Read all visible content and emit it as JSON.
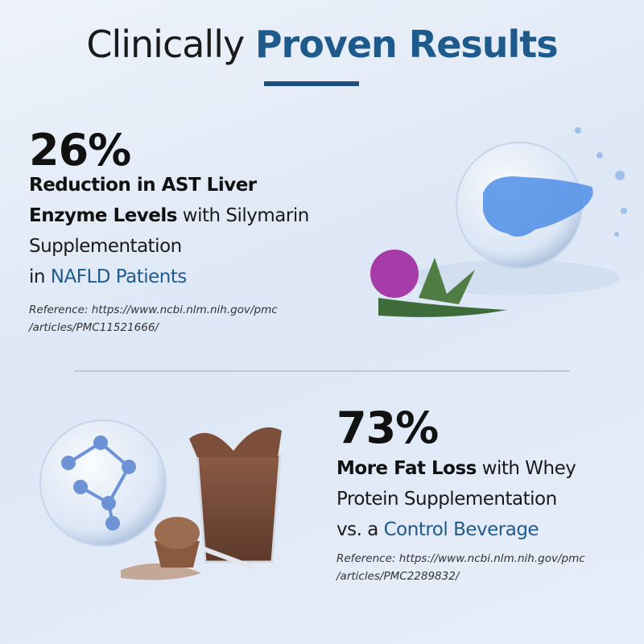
{
  "header": {
    "title": [
      {
        "text": "Clinically ",
        "kind": "regular"
      },
      {
        "text": "Proven Results",
        "kind": "accent-bold"
      }
    ]
  },
  "stats": [
    {
      "figure": "26%",
      "lines": [
        [
          {
            "text": "Reduction in AST Liver",
            "kind": "bold"
          }
        ],
        [
          {
            "text": "Enzyme Levels",
            "kind": "bold"
          },
          {
            "text": " with Silymarin",
            "kind": "regular"
          }
        ],
        [
          {
            "text": "Supplementation",
            "kind": "regular"
          }
        ],
        [
          {
            "text": "in ",
            "kind": "regular"
          },
          {
            "text": "NAFLD Patients",
            "kind": "accent"
          }
        ]
      ],
      "reference": [
        "Reference: https://www.ncbi.nlm.nih.gov/pmc",
        "/articles/PMC11521666/"
      ]
    },
    {
      "figure": "73%",
      "lines": [
        [
          {
            "text": "More Fat Loss",
            "kind": "bold"
          },
          {
            "text": " with Whey",
            "kind": "regular"
          }
        ],
        [
          {
            "text": "Protein Supplementation",
            "kind": "regular"
          }
        ],
        [
          {
            "text": "vs. a ",
            "kind": "regular"
          },
          {
            "text": "Control Beverage",
            "kind": "accent"
          }
        ]
      ],
      "reference": [
        "Reference: https://www.ncbi.nlm.nih.gov/pmc",
        "/articles/PMC2289832/"
      ]
    }
  ]
}
